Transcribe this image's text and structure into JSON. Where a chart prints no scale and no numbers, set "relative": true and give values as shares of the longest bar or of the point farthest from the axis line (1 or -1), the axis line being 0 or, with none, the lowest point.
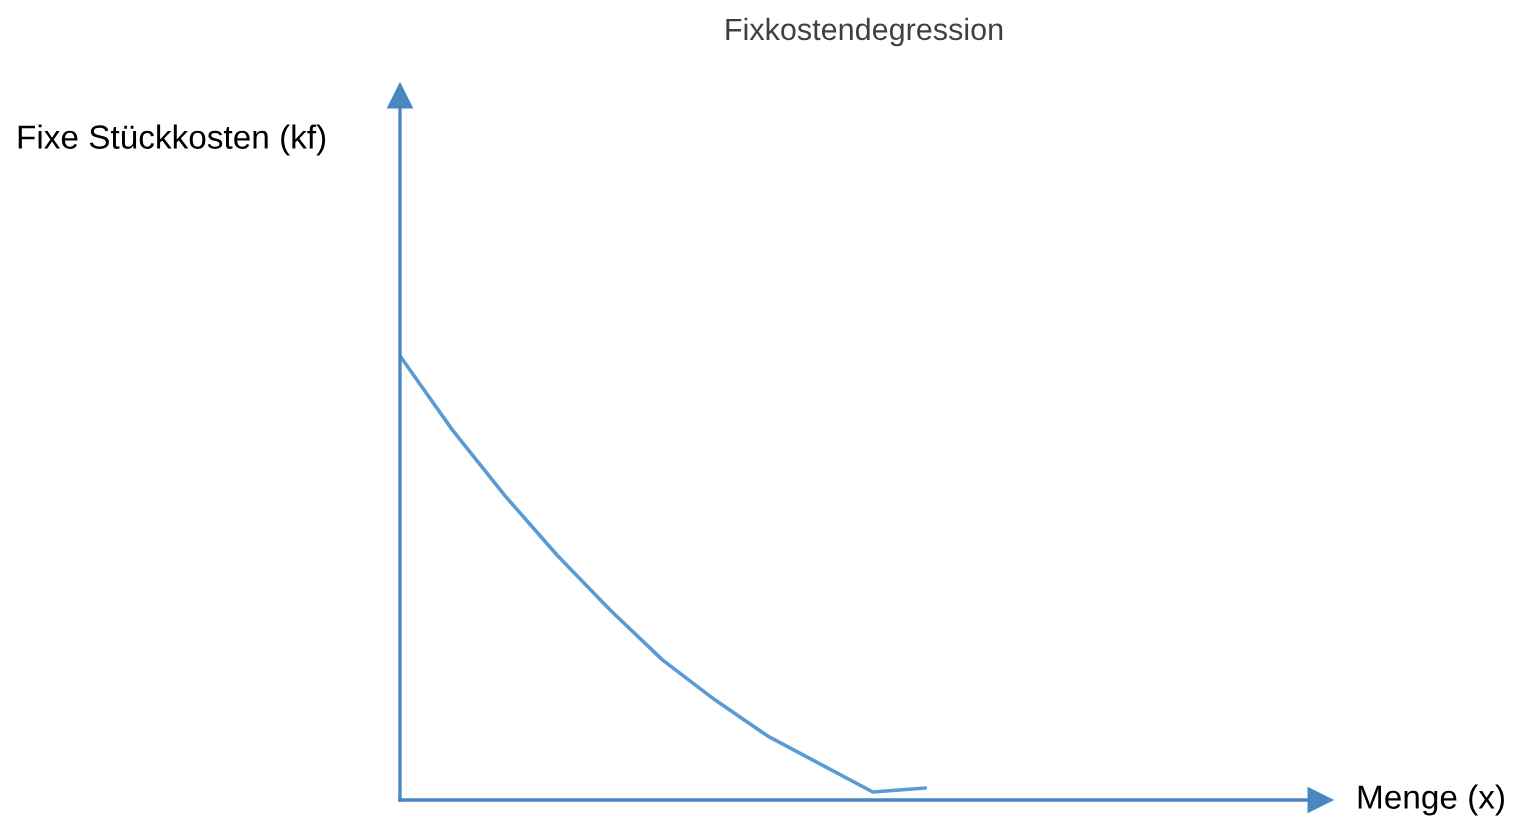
{
  "chart_data": {
    "type": "line",
    "title": "Fixkostendegression",
    "xlabel": "Menge (x)",
    "annotations": [
      "Fixe Stückkosten (kf)"
    ],
    "relative": true,
    "categories": [
      null,
      null,
      null,
      null,
      null,
      null,
      null,
      null,
      null,
      null,
      null,
      null,
      null,
      null,
      null,
      null,
      null,
      null
    ],
    "series": [
      {
        "color": "#5b9bd5",
        "values": [
          1,
          0.833,
          0.685,
          0.55,
          0.428,
          0.315,
          0.225,
          0.144,
          0.081,
          0.018,
          0.027,
          null,
          null,
          null,
          null,
          null,
          null,
          null
        ]
      }
    ],
    "legend": false,
    "marker": "none",
    "line_style": "solid"
  }
}
